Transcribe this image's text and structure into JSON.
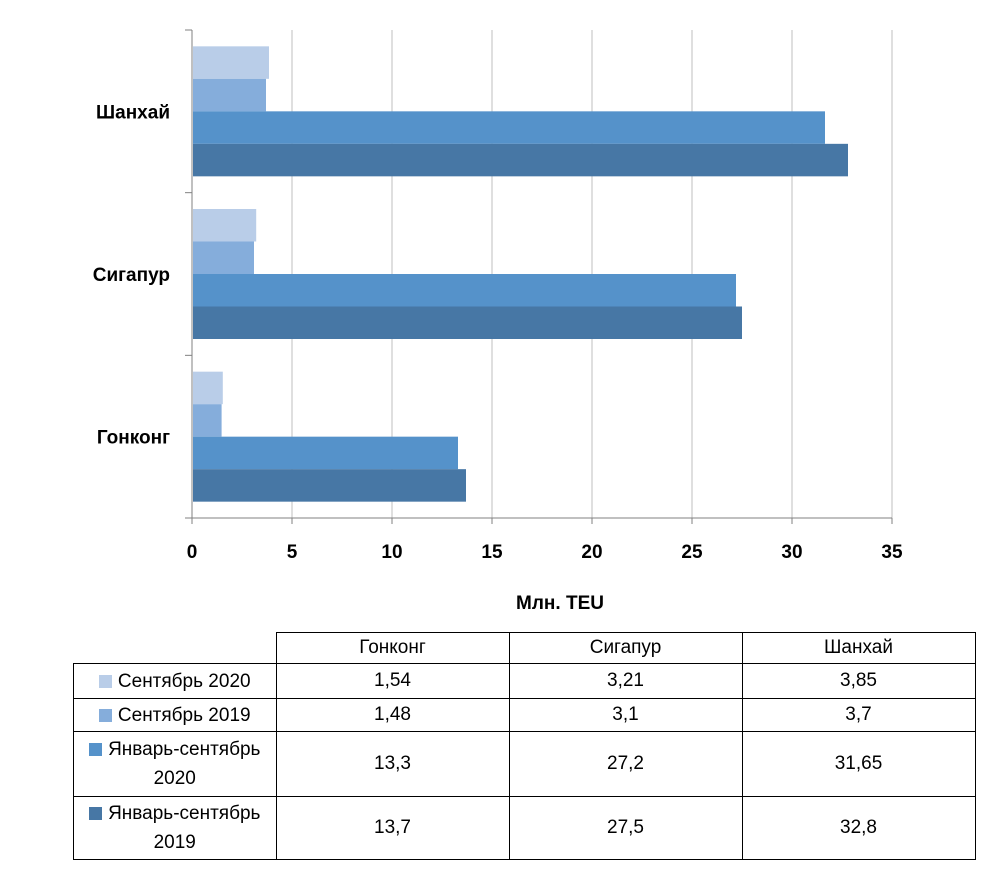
{
  "chart_data": {
    "type": "bar",
    "orientation": "horizontal",
    "categories": [
      "Гонконг",
      "Сигапур",
      "Шанхай"
    ],
    "series": [
      {
        "name": "Сентябрь 2020",
        "values": [
          1.54,
          3.21,
          3.85
        ],
        "color": "#B9CDE8"
      },
      {
        "name": "Сентябрь 2019",
        "values": [
          1.48,
          3.1,
          3.7
        ],
        "color": "#85ADDB"
      },
      {
        "name": "Январь-сентябрь 2020",
        "values": [
          13.3,
          27.2,
          31.65
        ],
        "color": "#5592CA"
      },
      {
        "name": "Январь-сентябрь 2019",
        "values": [
          13.7,
          27.5,
          32.8
        ],
        "color": "#4777A5"
      }
    ],
    "xlabel": "Млн. TEU",
    "xlim": [
      0,
      35
    ],
    "xticks": [
      "0",
      "5",
      "10",
      "15",
      "20",
      "25",
      "30",
      "35"
    ],
    "grid": true,
    "legend": "data table below chart"
  },
  "table": {
    "headers": [
      "Гонконг",
      "Сигапур",
      "Шанхай"
    ],
    "rows": [
      {
        "label_lines": [
          "Сентябрь 2020"
        ],
        "values": [
          "1,54",
          "3,21",
          "3,85"
        ]
      },
      {
        "label_lines": [
          "Сентябрь 2019"
        ],
        "values": [
          "1,48",
          "3,1",
          "3,7"
        ]
      },
      {
        "label_lines": [
          "Январь-сентябрь",
          "2020"
        ],
        "values": [
          "13,3",
          "27,2",
          "31,65"
        ]
      },
      {
        "label_lines": [
          "Январь-сентябрь",
          "2019"
        ],
        "values": [
          "13,7",
          "27,5",
          "32,8"
        ]
      }
    ]
  }
}
